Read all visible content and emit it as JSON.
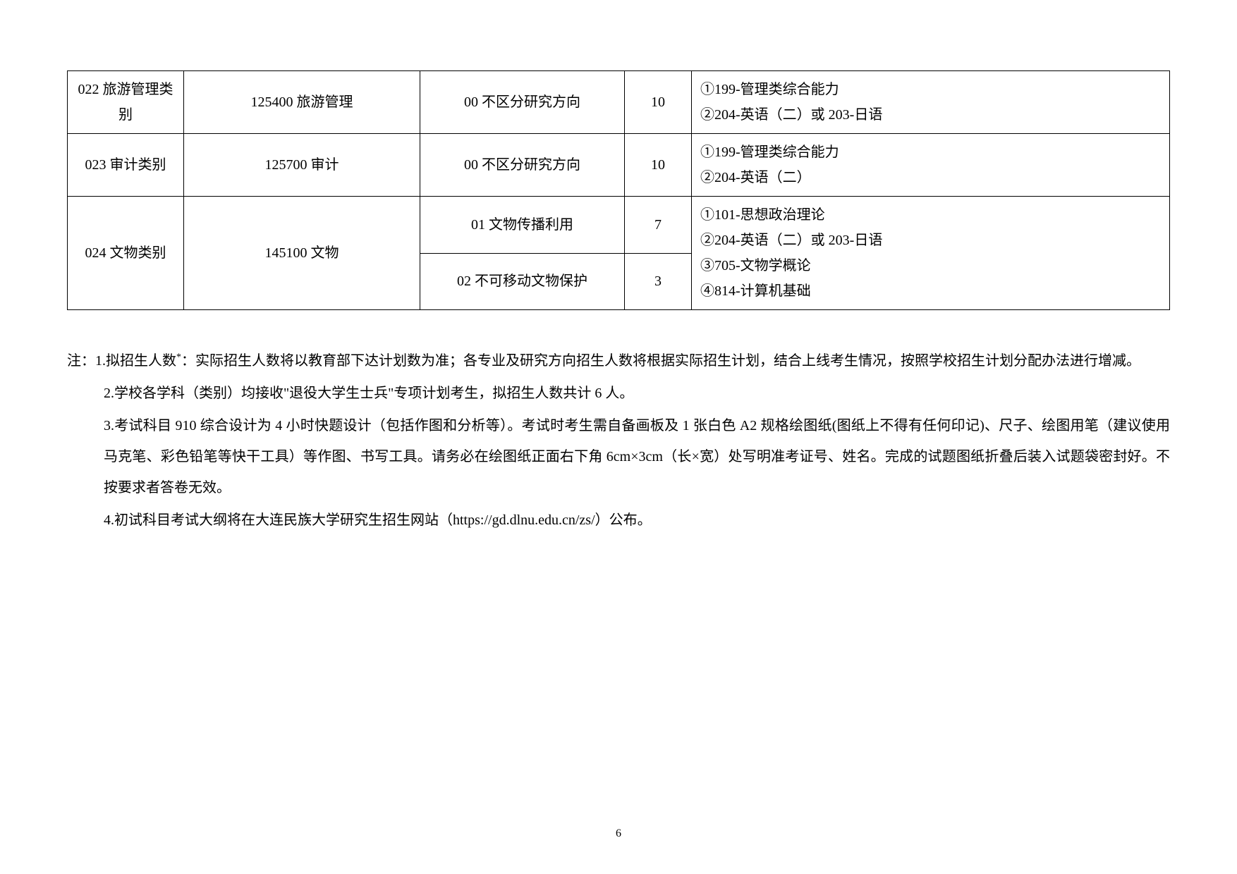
{
  "table": {
    "rows": [
      {
        "col1": "022 旅游管理类别",
        "col2": "125400 旅游管理",
        "col3": "00 不区分研究方向",
        "col4": "10",
        "col5": "①199-管理类综合能力\n②204-英语（二）或 203-日语"
      },
      {
        "col1": "023 审计类别",
        "col2": "125700 审计",
        "col3": "00 不区分研究方向",
        "col4": "10",
        "col5": "①199-管理类综合能力\n②204-英语（二）"
      },
      {
        "col1": "024 文物类别",
        "col2": "145100 文物",
        "sub": [
          {
            "col3": "01 文物传播利用",
            "col4": "7",
            "col5": "①101-思想政治理论\n②204-英语（二）或 203-日语"
          },
          {
            "col3": "02 不可移动文物保护",
            "col4": "3",
            "col5": "③705-文物学概论\n④814-计算机基础"
          }
        ]
      }
    ]
  },
  "notes": {
    "prefix": "注：",
    "items": [
      {
        "num": "1.",
        "text_start": "拟招生人数",
        "sup": "*",
        "text_rest": "：实际招生人数将以教育部下达计划数为准；各专业及研究方向招生人数将根据实际招生计划，结合上线考生情况，按照学校招生计划分配办法进行增减。"
      },
      {
        "num": "2.",
        "text": "学校各学科（类别）均接收\"退役大学生士兵\"专项计划考生，拟招生人数共计 6 人。"
      },
      {
        "num": "3.",
        "text": "考试科目 910 综合设计为 4 小时快题设计（包括作图和分析等）。考试时考生需自备画板及 1 张白色 A2 规格绘图纸(图纸上不得有任何印记)、尺子、绘图用笔（建议使用马克笔、彩色铅笔等快干工具）等作图、书写工具。请务必在绘图纸正面右下角 6cm×3cm（长×宽）处写明准考证号、姓名。完成的试题图纸折叠后装入试题袋密封好。不按要求者答卷无效。"
      },
      {
        "num": "4.",
        "text": "初试科目考试大纲将在大连民族大学研究生招生网站（https://gd.dlnu.edu.cn/zs/）公布。"
      }
    ]
  },
  "page_number": "6",
  "colors": {
    "text": "#000000",
    "background": "#ffffff",
    "border": "#000000"
  },
  "fonts": {
    "body_size": 20,
    "page_num_size": 16
  }
}
